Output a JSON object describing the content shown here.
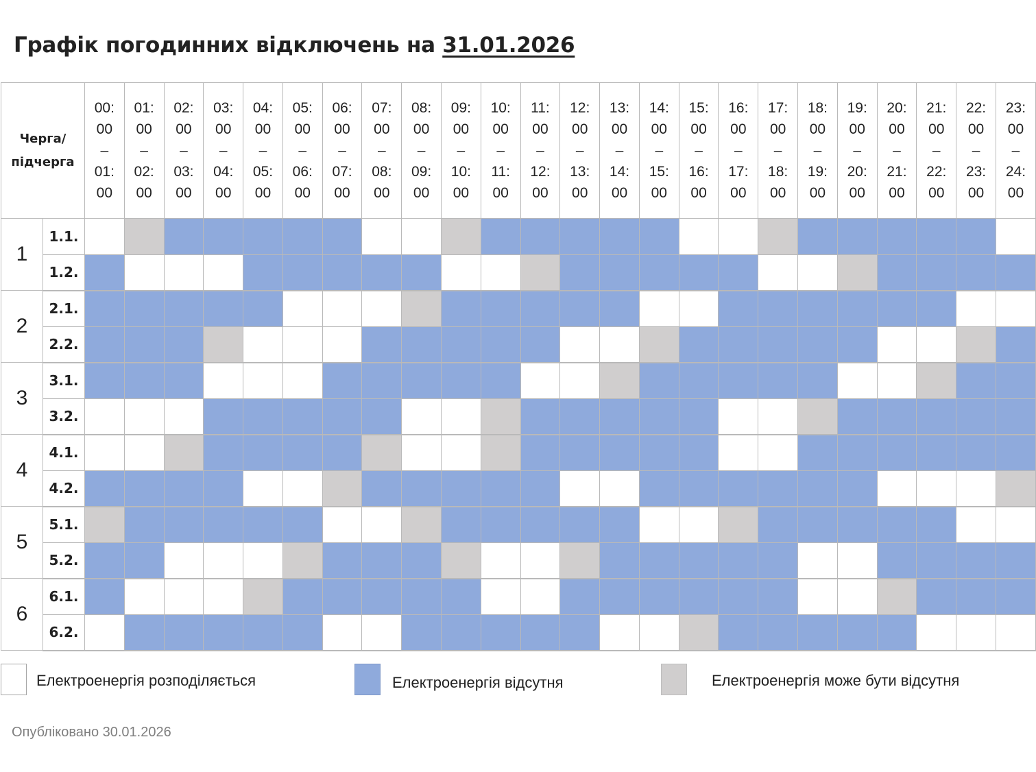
{
  "title": {
    "prefix": "Графік погодинних відключень на ",
    "date": "31.01.2026"
  },
  "table": {
    "corner_label_line1": "Черга/",
    "corner_label_line2": "підчерга",
    "hours": [
      [
        "00:",
        "00",
        "–",
        "01:",
        "00"
      ],
      [
        "01:",
        "00",
        "–",
        "02:",
        "00"
      ],
      [
        "02:",
        "00",
        "–",
        "03:",
        "00"
      ],
      [
        "03:",
        "00",
        "–",
        "04:",
        "00"
      ],
      [
        "04:",
        "00",
        "–",
        "05:",
        "00"
      ],
      [
        "05:",
        "00",
        "–",
        "06:",
        "00"
      ],
      [
        "06:",
        "00",
        "–",
        "07:",
        "00"
      ],
      [
        "07:",
        "00",
        "–",
        "08:",
        "00"
      ],
      [
        "08:",
        "00",
        "–",
        "09:",
        "00"
      ],
      [
        "09:",
        "00",
        "–",
        "10:",
        "00"
      ],
      [
        "10:",
        "00",
        "–",
        "11:",
        "00"
      ],
      [
        "11:",
        "00",
        "–",
        "12:",
        "00"
      ],
      [
        "12:",
        "00",
        "–",
        "13:",
        "00"
      ],
      [
        "13:",
        "00",
        "–",
        "14:",
        "00"
      ],
      [
        "14:",
        "00",
        "–",
        "15:",
        "00"
      ],
      [
        "15:",
        "00",
        "–",
        "16:",
        "00"
      ],
      [
        "16:",
        "00",
        "–",
        "17:",
        "00"
      ],
      [
        "17:",
        "00",
        "–",
        "18:",
        "00"
      ],
      [
        "18:",
        "00",
        "–",
        "19:",
        "00"
      ],
      [
        "19:",
        "00",
        "–",
        "20:",
        "00"
      ],
      [
        "20:",
        "00",
        "–",
        "21:",
        "00"
      ],
      [
        "21:",
        "00",
        "–",
        "22:",
        "00"
      ],
      [
        "22:",
        "00",
        "–",
        "23:",
        "00"
      ],
      [
        "23:",
        "00",
        "–",
        "24:",
        "00"
      ]
    ],
    "queues": [
      {
        "label": "1",
        "subqueues": [
          {
            "label": "1.1.",
            "slots": [
              0,
              2,
              1,
              1,
              1,
              1,
              1,
              0,
              0,
              2,
              1,
              1,
              1,
              1,
              1,
              0,
              0,
              2,
              1,
              1,
              1,
              1,
              1,
              0
            ]
          },
          {
            "label": "1.2.",
            "slots": [
              1,
              0,
              0,
              0,
              1,
              1,
              1,
              1,
              1,
              0,
              0,
              2,
              1,
              1,
              1,
              1,
              1,
              0,
              0,
              2,
              1,
              1,
              1,
              1
            ]
          }
        ]
      },
      {
        "label": "2",
        "subqueues": [
          {
            "label": "2.1.",
            "slots": [
              1,
              1,
              1,
              1,
              1,
              0,
              0,
              0,
              2,
              1,
              1,
              1,
              1,
              1,
              0,
              0,
              1,
              1,
              1,
              1,
              1,
              1,
              0,
              0
            ]
          },
          {
            "label": "2.2.",
            "slots": [
              1,
              1,
              1,
              2,
              0,
              0,
              0,
              1,
              1,
              1,
              1,
              1,
              0,
              0,
              2,
              1,
              1,
              1,
              1,
              1,
              0,
              0,
              2,
              1
            ]
          }
        ]
      },
      {
        "label": "3",
        "subqueues": [
          {
            "label": "3.1.",
            "slots": [
              1,
              1,
              1,
              0,
              0,
              0,
              1,
              1,
              1,
              1,
              1,
              0,
              0,
              2,
              1,
              1,
              1,
              1,
              1,
              0,
              0,
              2,
              1,
              1
            ]
          },
          {
            "label": "3.2.",
            "slots": [
              0,
              0,
              0,
              1,
              1,
              1,
              1,
              1,
              0,
              0,
              2,
              1,
              1,
              1,
              1,
              1,
              0,
              0,
              2,
              1,
              1,
              1,
              1,
              1
            ]
          }
        ]
      },
      {
        "label": "4",
        "subqueues": [
          {
            "label": "4.1.",
            "slots": [
              0,
              0,
              2,
              1,
              1,
              1,
              1,
              2,
              0,
              0,
              2,
              1,
              1,
              1,
              1,
              1,
              0,
              0,
              1,
              1,
              1,
              1,
              1,
              1
            ]
          },
          {
            "label": "4.2.",
            "slots": [
              1,
              1,
              1,
              1,
              0,
              0,
              2,
              1,
              1,
              1,
              1,
              1,
              0,
              0,
              1,
              1,
              1,
              1,
              1,
              1,
              0,
              0,
              0,
              2
            ]
          }
        ]
      },
      {
        "label": "5",
        "subqueues": [
          {
            "label": "5.1.",
            "slots": [
              2,
              1,
              1,
              1,
              1,
              1,
              0,
              0,
              2,
              1,
              1,
              1,
              1,
              1,
              0,
              0,
              2,
              1,
              1,
              1,
              1,
              1,
              0,
              0
            ]
          },
          {
            "label": "5.2.",
            "slots": [
              1,
              1,
              0,
              0,
              0,
              2,
              1,
              1,
              1,
              2,
              0,
              0,
              2,
              1,
              1,
              1,
              1,
              1,
              0,
              0,
              1,
              1,
              1,
              1
            ]
          }
        ]
      },
      {
        "label": "6",
        "subqueues": [
          {
            "label": "6.1.",
            "slots": [
              1,
              0,
              0,
              0,
              2,
              1,
              1,
              1,
              1,
              1,
              0,
              0,
              1,
              1,
              1,
              1,
              1,
              1,
              0,
              0,
              2,
              1,
              1,
              1
            ]
          },
          {
            "label": "6.2.",
            "slots": [
              0,
              1,
              1,
              1,
              1,
              1,
              0,
              0,
              1,
              1,
              1,
              1,
              1,
              0,
              0,
              2,
              1,
              1,
              1,
              1,
              1,
              0,
              0,
              0
            ]
          }
        ]
      }
    ]
  },
  "status_colors": {
    "power_on": "#ffffff",
    "power_off": "#8faadc",
    "possible_off": "#d0cece"
  },
  "legend": {
    "power_on_label": "Електроенергія розподіляється",
    "power_off_label": "Електроенергія відсутня",
    "possible_off_label": "Електроенергія може бути відсутня"
  },
  "published": "Опубліковано 30.01.2026"
}
